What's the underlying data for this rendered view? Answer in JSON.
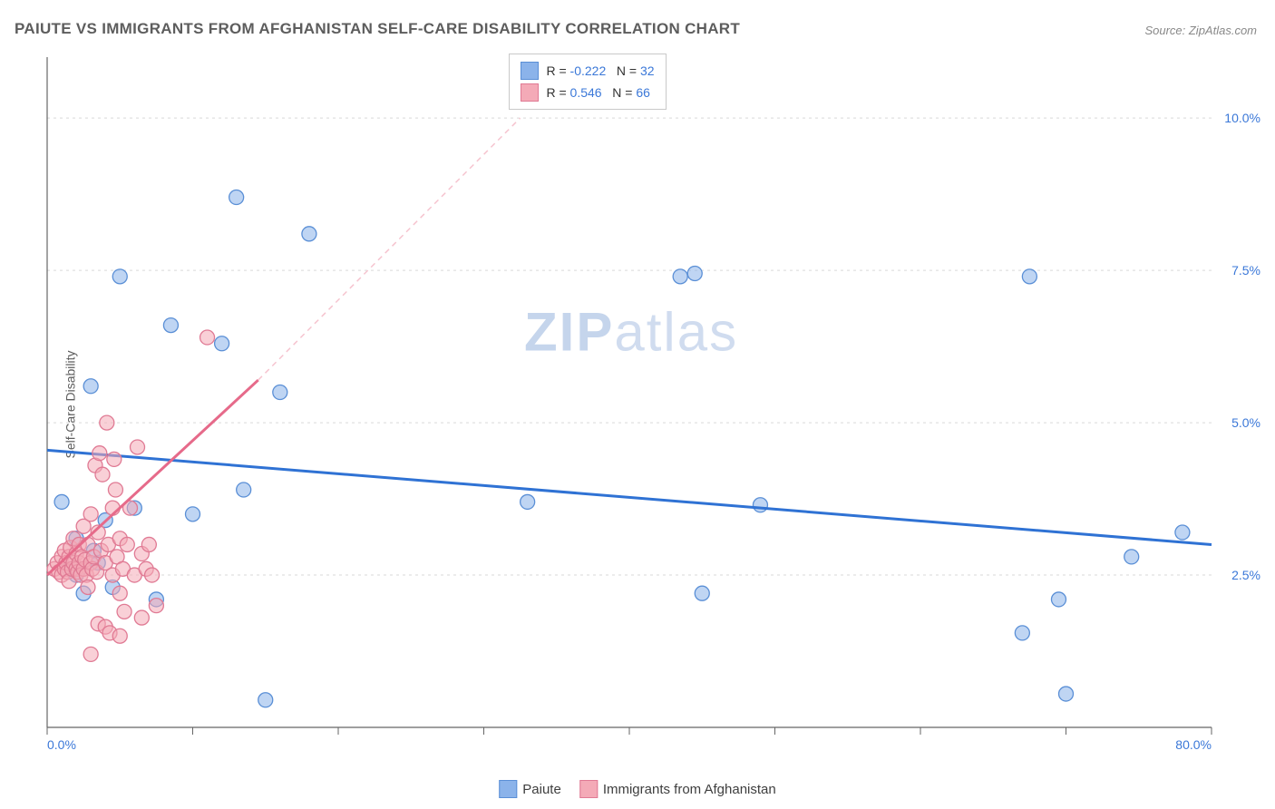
{
  "title": "PAIUTE VS IMMIGRANTS FROM AFGHANISTAN SELF-CARE DISABILITY CORRELATION CHART",
  "source": "Source: ZipAtlas.com",
  "ylabel": "Self-Care Disability",
  "watermark_bold": "ZIP",
  "watermark_light": "atlas",
  "chart": {
    "type": "scatter",
    "xlim": [
      0,
      80
    ],
    "ylim": [
      0,
      11
    ],
    "x_ticks": [
      0,
      10,
      20,
      30,
      40,
      50,
      60,
      70,
      80
    ],
    "x_tick_labels_shown": {
      "0": "0.0%",
      "80": "80.0%"
    },
    "y_grid": [
      2.5,
      5.0,
      7.5,
      10.0
    ],
    "y_tick_labels": [
      "2.5%",
      "5.0%",
      "7.5%",
      "10.0%"
    ],
    "background_color": "#ffffff",
    "grid_color": "#d9d9d9",
    "axis_color": "#666666",
    "tick_label_color": "#3b78d8",
    "marker_radius": 8,
    "marker_opacity": 0.55,
    "series": [
      {
        "name": "Paiute",
        "color": "#8bb3ea",
        "stroke": "#5a8fd6",
        "R": -0.222,
        "N": 32,
        "trend": {
          "x1": 0,
          "y1": 4.55,
          "x2": 80,
          "y2": 3.0,
          "color": "#2f72d4",
          "width": 3,
          "dash": "none"
        },
        "points": [
          [
            1.0,
            3.7
          ],
          [
            1.5,
            2.6
          ],
          [
            2.0,
            3.1
          ],
          [
            2.5,
            2.2
          ],
          [
            3.0,
            5.6
          ],
          [
            3.2,
            2.9
          ],
          [
            3.5,
            2.7
          ],
          [
            4.0,
            3.4
          ],
          [
            5.0,
            7.4
          ],
          [
            6.0,
            3.6
          ],
          [
            7.5,
            2.1
          ],
          [
            8.5,
            6.6
          ],
          [
            10.0,
            3.5
          ],
          [
            12.0,
            6.3
          ],
          [
            13.0,
            8.7
          ],
          [
            13.5,
            3.9
          ],
          [
            15.0,
            0.45
          ],
          [
            16.0,
            5.5
          ],
          [
            18.0,
            8.1
          ],
          [
            33.0,
            3.7
          ],
          [
            43.5,
            7.4
          ],
          [
            44.5,
            7.45
          ],
          [
            45.0,
            2.2
          ],
          [
            49.0,
            3.65
          ],
          [
            67.0,
            1.55
          ],
          [
            67.5,
            7.4
          ],
          [
            69.5,
            2.1
          ],
          [
            70.0,
            0.55
          ],
          [
            74.5,
            2.8
          ],
          [
            78.0,
            3.2
          ],
          [
            2.0,
            2.5
          ],
          [
            4.5,
            2.3
          ]
        ]
      },
      {
        "name": "Immigrants from Afghanistan",
        "color": "#f4aab7",
        "stroke": "#e07a94",
        "R": 0.546,
        "N": 66,
        "trend_solid": {
          "x1": 0,
          "y1": 2.5,
          "x2": 14.5,
          "y2": 5.7,
          "color": "#e66a8a",
          "width": 3
        },
        "trend_dashed": {
          "x1": 14.5,
          "y1": 5.7,
          "x2": 32.5,
          "y2": 10.0,
          "color": "#f6c4cf",
          "width": 1.5,
          "dash": "6,5"
        },
        "points": [
          [
            0.5,
            2.6
          ],
          [
            0.7,
            2.7
          ],
          [
            0.8,
            2.55
          ],
          [
            1.0,
            2.8
          ],
          [
            1.0,
            2.5
          ],
          [
            1.2,
            2.6
          ],
          [
            1.2,
            2.9
          ],
          [
            1.3,
            2.7
          ],
          [
            1.4,
            2.55
          ],
          [
            1.5,
            2.8
          ],
          [
            1.5,
            2.4
          ],
          [
            1.6,
            2.95
          ],
          [
            1.7,
            2.6
          ],
          [
            1.8,
            2.7
          ],
          [
            1.8,
            3.1
          ],
          [
            2.0,
            2.6
          ],
          [
            2.0,
            2.85
          ],
          [
            2.1,
            2.55
          ],
          [
            2.2,
            2.7
          ],
          [
            2.2,
            3.0
          ],
          [
            2.3,
            2.5
          ],
          [
            2.4,
            2.8
          ],
          [
            2.5,
            3.3
          ],
          [
            2.5,
            2.6
          ],
          [
            2.6,
            2.75
          ],
          [
            2.7,
            2.5
          ],
          [
            2.8,
            3.0
          ],
          [
            2.8,
            2.3
          ],
          [
            3.0,
            2.7
          ],
          [
            3.0,
            3.5
          ],
          [
            3.1,
            2.6
          ],
          [
            3.2,
            2.8
          ],
          [
            3.3,
            4.3
          ],
          [
            3.4,
            2.55
          ],
          [
            3.5,
            1.7
          ],
          [
            3.5,
            3.2
          ],
          [
            3.6,
            4.5
          ],
          [
            3.7,
            2.9
          ],
          [
            3.8,
            4.15
          ],
          [
            4.0,
            1.65
          ],
          [
            4.0,
            2.7
          ],
          [
            4.1,
            5.0
          ],
          [
            4.2,
            3.0
          ],
          [
            4.3,
            1.55
          ],
          [
            4.5,
            3.6
          ],
          [
            4.5,
            2.5
          ],
          [
            4.6,
            4.4
          ],
          [
            4.7,
            3.9
          ],
          [
            4.8,
            2.8
          ],
          [
            5.0,
            3.1
          ],
          [
            5.0,
            2.2
          ],
          [
            5.2,
            2.6
          ],
          [
            5.3,
            1.9
          ],
          [
            5.5,
            3.0
          ],
          [
            5.7,
            3.6
          ],
          [
            6.0,
            2.5
          ],
          [
            6.2,
            4.6
          ],
          [
            6.5,
            1.8
          ],
          [
            6.5,
            2.85
          ],
          [
            6.8,
            2.6
          ],
          [
            7.0,
            3.0
          ],
          [
            7.2,
            2.5
          ],
          [
            7.5,
            2.0
          ],
          [
            11.0,
            6.4
          ],
          [
            3.0,
            1.2
          ],
          [
            5.0,
            1.5
          ]
        ]
      }
    ],
    "legend_top": {
      "r_label": "R =",
      "n_label": "N =",
      "value_color": "#3b78d8"
    },
    "legend_bottom": {
      "items": [
        "Paiute",
        "Immigrants from Afghanistan"
      ]
    }
  }
}
